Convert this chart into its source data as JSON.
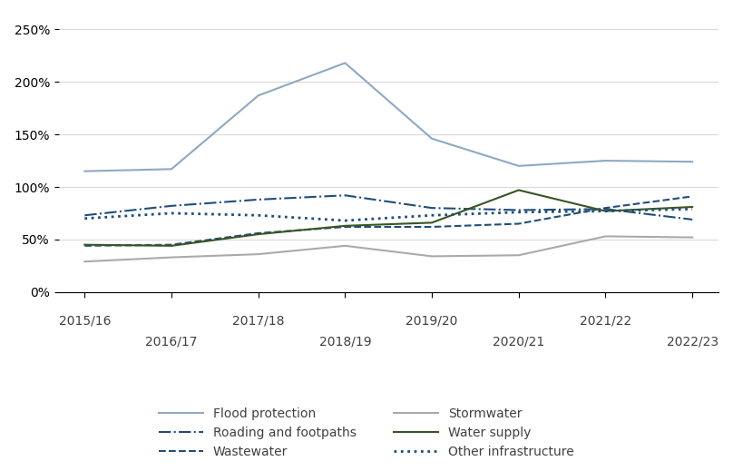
{
  "x_positions": [
    0,
    1,
    2,
    3,
    4,
    5,
    6,
    7
  ],
  "series": {
    "Flood protection": {
      "values": [
        1.15,
        1.17,
        1.87,
        2.18,
        1.46,
        1.2,
        1.25,
        1.24
      ],
      "color": "#8EA9C1",
      "linestyle": "solid",
      "linewidth": 1.5
    },
    "Roading and footpaths": {
      "values": [
        0.73,
        0.82,
        0.88,
        0.92,
        0.8,
        0.78,
        0.79,
        0.69
      ],
      "color": "#1F4E79",
      "linestyle": "dashdot",
      "linewidth": 1.5
    },
    "Wastewater": {
      "values": [
        0.44,
        0.45,
        0.56,
        0.62,
        0.62,
        0.65,
        0.8,
        0.91
      ],
      "color": "#1F4E79",
      "linestyle": "dashed",
      "linewidth": 1.5
    },
    "Stormwater": {
      "values": [
        0.29,
        0.33,
        0.36,
        0.44,
        0.34,
        0.35,
        0.53,
        0.52
      ],
      "color": "#AAAAAA",
      "linestyle": "solid",
      "linewidth": 1.5
    },
    "Water supply": {
      "values": [
        0.45,
        0.44,
        0.55,
        0.63,
        0.66,
        0.97,
        0.77,
        0.81
      ],
      "color": "#375623",
      "linestyle": "solid",
      "linewidth": 1.5
    },
    "Other infrastructure": {
      "values": [
        0.7,
        0.75,
        0.73,
        0.68,
        0.73,
        0.76,
        0.77,
        0.79
      ],
      "color": "#1F4E79",
      "linestyle": "dotted",
      "linewidth": 2.0
    }
  },
  "ylim": [
    0,
    2.6
  ],
  "yticks": [
    0.0,
    0.5,
    1.0,
    1.5,
    2.0,
    2.5
  ],
  "ytick_labels": [
    "0%",
    "50%",
    "100%",
    "150%",
    "200%",
    "250%"
  ],
  "labels_row1": [
    "2015/16",
    "",
    "2017/18",
    "",
    "2019/20",
    "",
    "2021/22",
    ""
  ],
  "labels_row2": [
    "",
    "2016/17",
    "",
    "2018/19",
    "",
    "2020/21",
    "",
    "2022/23"
  ],
  "background_color": "#ffffff",
  "grid_color": "#d9d9d9",
  "legend_order": [
    "Flood protection",
    "Roading and footpaths",
    "Wastewater",
    "Stormwater",
    "Water supply",
    "Other infrastructure"
  ]
}
